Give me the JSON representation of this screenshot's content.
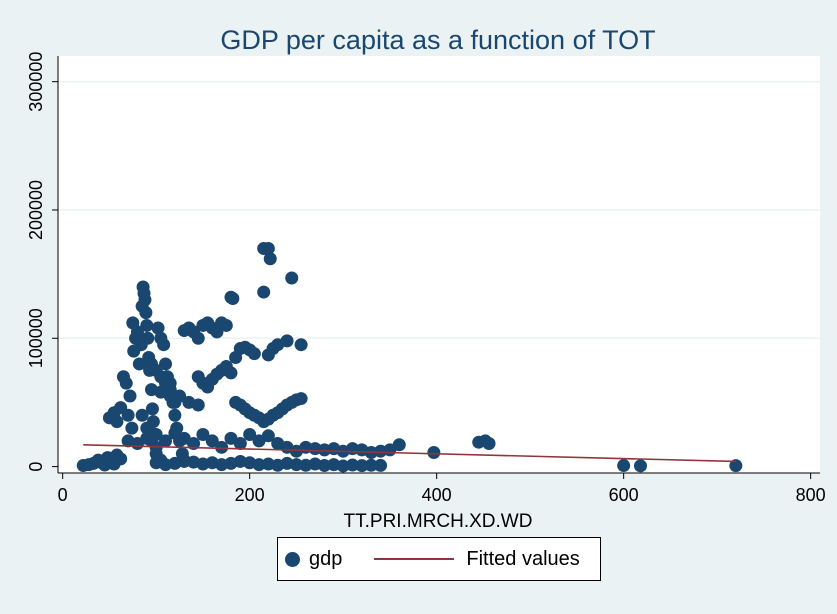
{
  "colors": {
    "background": "#eaf2f3",
    "plot_bg": "#ffffff",
    "gdp_marker": "#1a476f",
    "fitted_line": "#90353b",
    "grid": "#eaf2f3"
  },
  "chart_data": {
    "type": "scatter",
    "title": "GDP per capita as a function of TOT",
    "xlabel": "TT.PRI.MRCH.XD.WD",
    "ylabel": "",
    "xlim": [
      -5,
      810
    ],
    "ylim": [
      -5000,
      320000
    ],
    "xticks": [
      0,
      200,
      400,
      600,
      800
    ],
    "xtick_labels": [
      "0",
      "200",
      "400",
      "600",
      "800"
    ],
    "yticks": [
      0,
      100000,
      200000,
      300000
    ],
    "ytick_labels": [
      "0",
      "100000",
      "200000",
      "300000"
    ],
    "grid": true,
    "legend_position": "bottom-center",
    "series": [
      {
        "name": "gdp",
        "kind": "scatter",
        "points": [
          [
            22,
            800
          ],
          [
            28,
            1500
          ],
          [
            33,
            2500
          ],
          [
            38,
            5000
          ],
          [
            42,
            3000
          ],
          [
            45,
            1200
          ],
          [
            48,
            7000
          ],
          [
            52,
            4000
          ],
          [
            55,
            2000
          ],
          [
            58,
            9000
          ],
          [
            62,
            6000
          ],
          [
            50,
            38000
          ],
          [
            55,
            42000
          ],
          [
            58,
            35000
          ],
          [
            62,
            46000
          ],
          [
            65,
            70000
          ],
          [
            68,
            65000
          ],
          [
            70,
            40000
          ],
          [
            72,
            55000
          ],
          [
            74,
            30000
          ],
          [
            75,
            112000
          ],
          [
            76,
            90000
          ],
          [
            78,
            100000
          ],
          [
            80,
            105000
          ],
          [
            82,
            80000
          ],
          [
            84,
            95000
          ],
          [
            85,
            125000
          ],
          [
            86,
            140000
          ],
          [
            87,
            135000
          ],
          [
            88,
            130000
          ],
          [
            89,
            120000
          ],
          [
            90,
            110000
          ],
          [
            91,
            100000
          ],
          [
            92,
            85000
          ],
          [
            93,
            75000
          ],
          [
            95,
            60000
          ],
          [
            96,
            45000
          ],
          [
            97,
            35000
          ],
          [
            98,
            25000
          ],
          [
            100,
            15000
          ],
          [
            102,
            108000
          ],
          [
            105,
            100000
          ],
          [
            108,
            95000
          ],
          [
            110,
            80000
          ],
          [
            112,
            70000
          ],
          [
            115,
            60000
          ],
          [
            118,
            50000
          ],
          [
            120,
            40000
          ],
          [
            122,
            30000
          ],
          [
            125,
            20000
          ],
          [
            128,
            10000
          ],
          [
            130,
            5000
          ],
          [
            100,
            3000
          ],
          [
            110,
            1500
          ],
          [
            120,
            2500
          ],
          [
            130,
            4000
          ],
          [
            140,
            3500
          ],
          [
            150,
            2000
          ],
          [
            160,
            3000
          ],
          [
            170,
            1500
          ],
          [
            180,
            2500
          ],
          [
            190,
            4000
          ],
          [
            200,
            3000
          ],
          [
            210,
            1500
          ],
          [
            220,
            2000
          ],
          [
            230,
            1000
          ],
          [
            240,
            2500
          ],
          [
            250,
            1500
          ],
          [
            260,
            1000
          ],
          [
            270,
            2000
          ],
          [
            280,
            800
          ],
          [
            290,
            1500
          ],
          [
            300,
            500
          ],
          [
            310,
            1200
          ],
          [
            320,
            700
          ],
          [
            330,
            1000
          ],
          [
            340,
            900
          ],
          [
            70,
            20000
          ],
          [
            80,
            18000
          ],
          [
            90,
            22000
          ],
          [
            100,
            25000
          ],
          [
            110,
            20000
          ],
          [
            120,
            26000
          ],
          [
            130,
            22000
          ],
          [
            140,
            18000
          ],
          [
            150,
            25000
          ],
          [
            160,
            20000
          ],
          [
            170,
            15000
          ],
          [
            180,
            22000
          ],
          [
            190,
            18000
          ],
          [
            200,
            25000
          ],
          [
            210,
            20000
          ],
          [
            220,
            24000
          ],
          [
            230,
            18000
          ],
          [
            240,
            15000
          ],
          [
            250,
            12000
          ],
          [
            260,
            15000
          ],
          [
            270,
            14000
          ],
          [
            280,
            13000
          ],
          [
            290,
            14000
          ],
          [
            300,
            12000
          ],
          [
            310,
            14000
          ],
          [
            320,
            13000
          ],
          [
            330,
            11000
          ],
          [
            340,
            12000
          ],
          [
            350,
            13000
          ],
          [
            360,
            17000
          ],
          [
            397,
            11000
          ],
          [
            445,
            19000
          ],
          [
            452,
            20000
          ],
          [
            456,
            18000
          ],
          [
            600,
            800
          ],
          [
            618,
            600
          ],
          [
            720,
            700
          ],
          [
            130,
            106000
          ],
          [
            135,
            108000
          ],
          [
            140,
            105000
          ],
          [
            145,
            100000
          ],
          [
            150,
            110000
          ],
          [
            155,
            112000
          ],
          [
            160,
            108000
          ],
          [
            165,
            105000
          ],
          [
            170,
            112000
          ],
          [
            175,
            110000
          ],
          [
            180,
            132000
          ],
          [
            182,
            131000
          ],
          [
            185,
            85000
          ],
          [
            190,
            92000
          ],
          [
            195,
            93000
          ],
          [
            200,
            91000
          ],
          [
            205,
            88000
          ],
          [
            215,
            170000
          ],
          [
            220,
            170000
          ],
          [
            222,
            162000
          ],
          [
            215,
            136000
          ],
          [
            245,
            147000
          ],
          [
            220,
            87000
          ],
          [
            225,
            92000
          ],
          [
            230,
            95000
          ],
          [
            240,
            98000
          ],
          [
            255,
            95000
          ],
          [
            145,
            70000
          ],
          [
            150,
            65000
          ],
          [
            155,
            62000
          ],
          [
            160,
            68000
          ],
          [
            165,
            72000
          ],
          [
            170,
            75000
          ],
          [
            175,
            78000
          ],
          [
            180,
            73000
          ],
          [
            185,
            50000
          ],
          [
            190,
            48000
          ],
          [
            195,
            45000
          ],
          [
            200,
            42000
          ],
          [
            205,
            40000
          ],
          [
            210,
            38000
          ],
          [
            215,
            35000
          ],
          [
            220,
            37000
          ],
          [
            225,
            40000
          ],
          [
            230,
            42000
          ],
          [
            235,
            45000
          ],
          [
            240,
            48000
          ],
          [
            245,
            50000
          ],
          [
            250,
            52000
          ],
          [
            255,
            53000
          ],
          [
            105,
            58000
          ],
          [
            115,
            65000
          ],
          [
            125,
            55000
          ],
          [
            135,
            50000
          ],
          [
            145,
            48000
          ],
          [
            95,
            80000
          ],
          [
            100,
            75000
          ],
          [
            105,
            70000
          ],
          [
            110,
            65000
          ],
          [
            115,
            55000
          ],
          [
            120,
            50000
          ],
          [
            85,
            40000
          ],
          [
            90,
            30000
          ],
          [
            95,
            20000
          ],
          [
            100,
            10000
          ],
          [
            105,
            5000
          ]
        ]
      },
      {
        "name": "Fitted values",
        "kind": "line",
        "points": [
          [
            22,
            17000
          ],
          [
            720,
            4000
          ]
        ]
      }
    ]
  }
}
